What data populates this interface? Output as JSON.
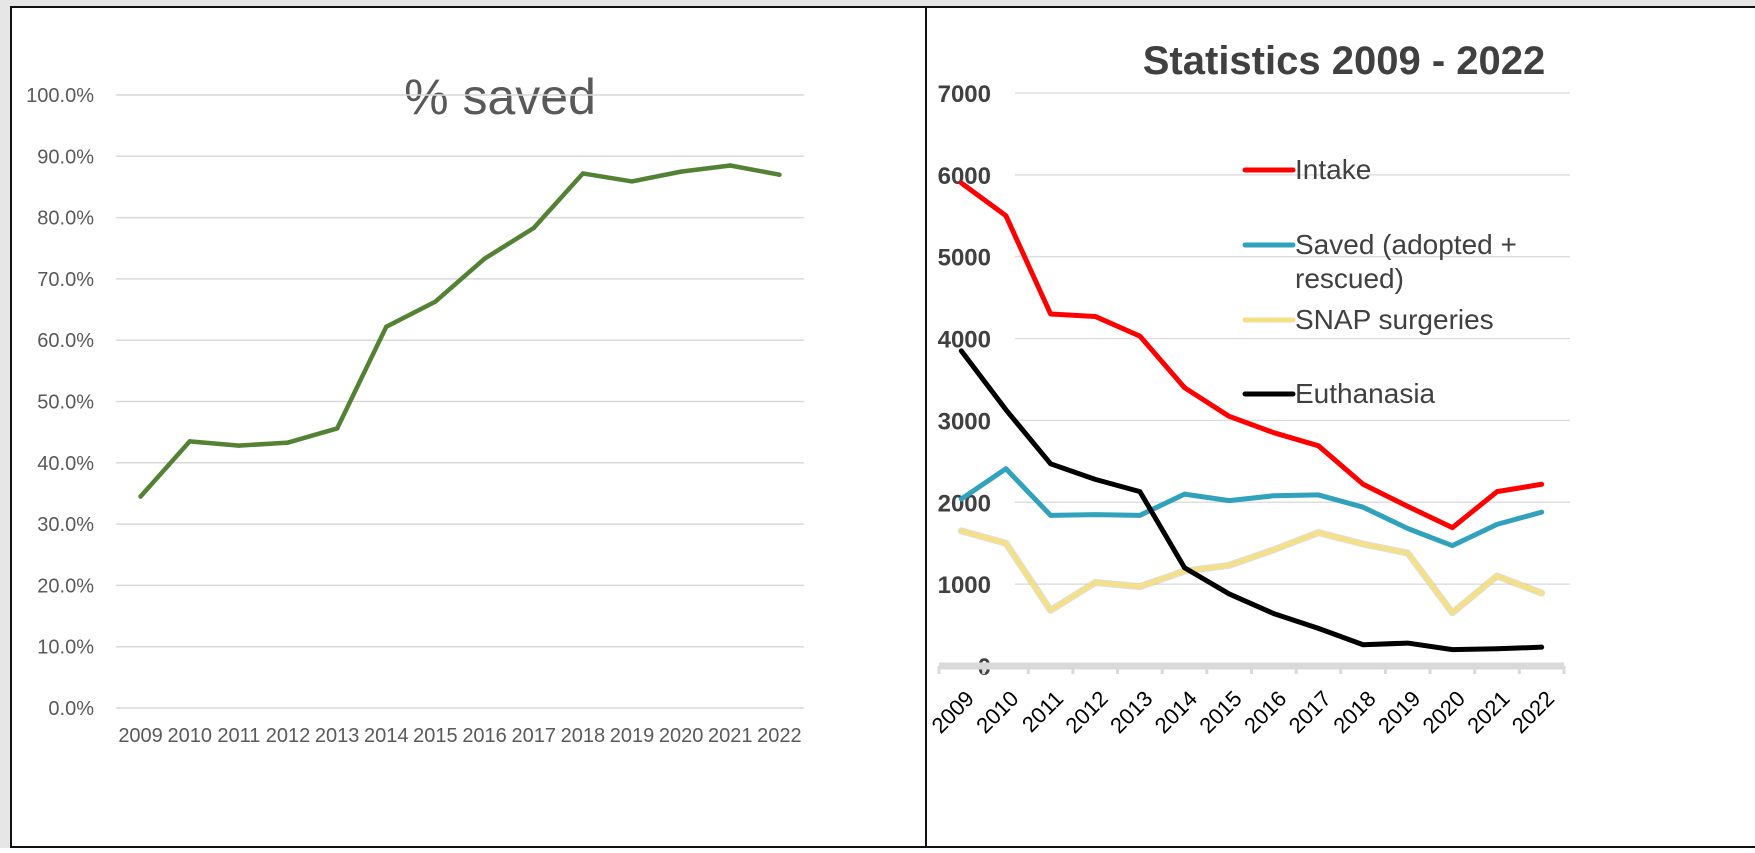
{
  "charts": {
    "left": {
      "title": "% saved",
      "y_tick_labels": [
        "0.0%",
        "10.0%",
        "20.0%",
        "30.0%",
        "40.0%",
        "50.0%",
        "60.0%",
        "70.0%",
        "80.0%",
        "90.0%",
        "100.0%"
      ]
    },
    "right": {
      "title": "Statistics  2009 - 2022",
      "y_tick_labels": [
        "0",
        "1000",
        "2000",
        "3000",
        "4000",
        "5000",
        "6000",
        "7000"
      ]
    }
  },
  "chart_data": [
    {
      "type": "line",
      "title": "% saved",
      "categories": [
        "2009",
        "2010",
        "2011",
        "2012",
        "2013",
        "2014",
        "2015",
        "2016",
        "2017",
        "2018",
        "2019",
        "2020",
        "2021",
        "2022"
      ],
      "series": [
        {
          "color": "#548235",
          "values": [
            34.5,
            43.5,
            42.8,
            43.3,
            45.6,
            62.2,
            66.3,
            73.3,
            78.3,
            87.2,
            85.9,
            87.5,
            88.5,
            87.0
          ]
        }
      ],
      "ylim": [
        0,
        100
      ],
      "y_format": "percent_1dp",
      "grid": true,
      "legend": "none"
    },
    {
      "type": "line",
      "title": "Statistics  2009 - 2022",
      "categories": [
        "2009",
        "2010",
        "2011",
        "2012",
        "2013",
        "2014",
        "2015",
        "2016",
        "2017",
        "2018",
        "2019",
        "2020",
        "2021",
        "2022"
      ],
      "series": [
        {
          "name": "Intake",
          "color": "#ff0000",
          "values": [
            5900,
            5500,
            4300,
            4270,
            4030,
            3400,
            3050,
            2850,
            2690,
            2220,
            1950,
            1690,
            2130,
            2220
          ]
        },
        {
          "name": "Saved (adopted + rescued)",
          "color": "#31a2bc",
          "values": [
            2040,
            2410,
            1840,
            1850,
            1840,
            2100,
            2020,
            2080,
            2090,
            1940,
            1680,
            1470,
            1730,
            1880
          ]
        },
        {
          "name": "SNAP surgeries",
          "color": "#f5e08a",
          "values": [
            1650,
            1500,
            680,
            1020,
            970,
            1160,
            1230,
            1420,
            1630,
            1490,
            1380,
            650,
            1100,
            890
          ]
        },
        {
          "name": "Euthanasia",
          "color": "#000000",
          "values": [
            3850,
            3130,
            2470,
            2280,
            2130,
            1200,
            880,
            640,
            460,
            260,
            280,
            200,
            210,
            230
          ]
        }
      ],
      "ylim": [
        0,
        7000
      ],
      "grid": true,
      "legend": "right"
    }
  ]
}
